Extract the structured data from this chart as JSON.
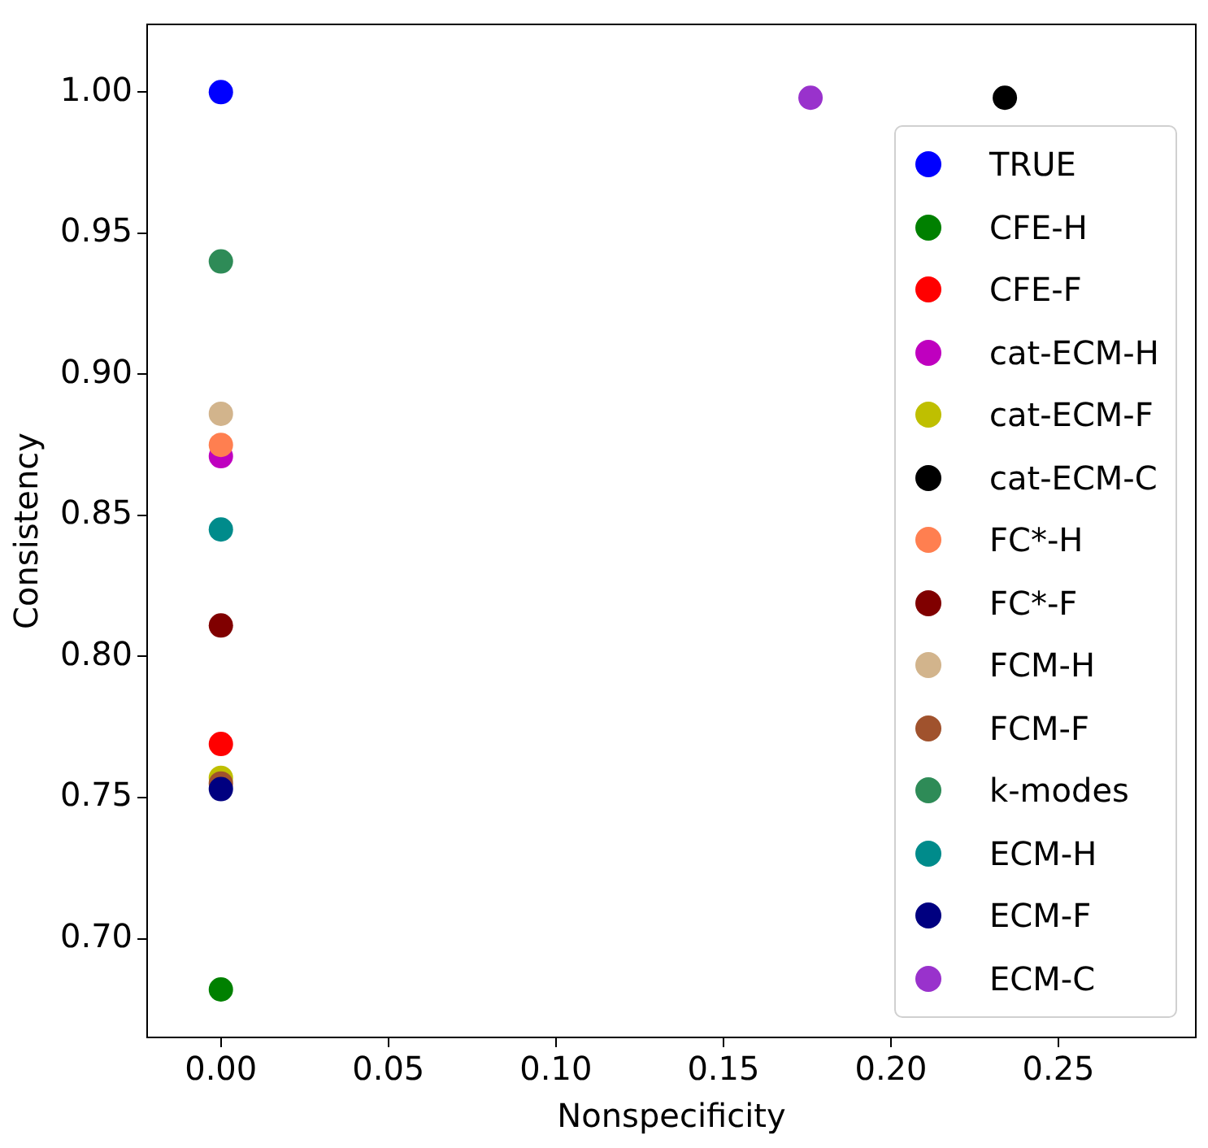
{
  "chart_data": {
    "type": "scatter",
    "xlabel": "Nonspecificity",
    "ylabel": "Consistency",
    "xlim": [
      -0.022,
      0.291
    ],
    "ylim": [
      0.665,
      1.024
    ],
    "xticks": [
      {
        "value": 0,
        "label": "0.00"
      },
      {
        "value": 0.05,
        "label": "0.05"
      },
      {
        "value": 0.1,
        "label": "0.10"
      },
      {
        "value": 0.15,
        "label": "0.15"
      },
      {
        "value": 0.2,
        "label": "0.20"
      },
      {
        "value": 0.25,
        "label": "0.25"
      }
    ],
    "yticks": [
      {
        "value": 0.7,
        "label": "0.70"
      },
      {
        "value": 0.75,
        "label": "0.75"
      },
      {
        "value": 0.8,
        "label": "0.80"
      },
      {
        "value": 0.85,
        "label": "0.85"
      },
      {
        "value": 0.9,
        "label": "0.90"
      },
      {
        "value": 0.95,
        "label": "0.95"
      },
      {
        "value": 1,
        "label": "1.00"
      }
    ],
    "grid": false,
    "legend": "bottom right",
    "marker": "circle",
    "series": [
      {
        "name": "TRUE",
        "color": "#0000ff",
        "x": [
          0
        ],
        "values": [
          1.0
        ]
      },
      {
        "name": "CFE-H",
        "color": "#008000",
        "x": [
          0
        ],
        "values": [
          0.682
        ]
      },
      {
        "name": "CFE-F",
        "color": "#ff0000",
        "x": [
          0
        ],
        "values": [
          0.769
        ]
      },
      {
        "name": "cat-ECM-H",
        "color": "#bf00bf",
        "x": [
          0
        ],
        "values": [
          0.871
        ]
      },
      {
        "name": "cat-ECM-F",
        "color": "#bfbf00",
        "x": [
          0
        ],
        "values": [
          0.757
        ]
      },
      {
        "name": "cat-ECM-C",
        "color": "#000000",
        "x": [
          0.234
        ],
        "values": [
          0.998
        ]
      },
      {
        "name": "FC*-H",
        "color": "#ff7f50",
        "x": [
          0
        ],
        "values": [
          0.875
        ]
      },
      {
        "name": "FC*-F",
        "color": "#800000",
        "x": [
          0
        ],
        "values": [
          0.811
        ]
      },
      {
        "name": "FCM-H",
        "color": "#d2b48c",
        "x": [
          0
        ],
        "values": [
          0.886
        ]
      },
      {
        "name": "FCM-F",
        "color": "#a0522d",
        "x": [
          0
        ],
        "values": [
          0.755
        ]
      },
      {
        "name": "k-modes",
        "color": "#2e8b57",
        "x": [
          0
        ],
        "values": [
          0.94
        ]
      },
      {
        "name": "ECM-H",
        "color": "#008b8b",
        "x": [
          0
        ],
        "values": [
          0.845
        ]
      },
      {
        "name": "ECM-F",
        "color": "#000080",
        "x": [
          0
        ],
        "values": [
          0.753
        ]
      },
      {
        "name": "ECM-C",
        "color": "#9932cc",
        "x": [
          0.176
        ],
        "values": [
          0.998
        ]
      }
    ]
  }
}
